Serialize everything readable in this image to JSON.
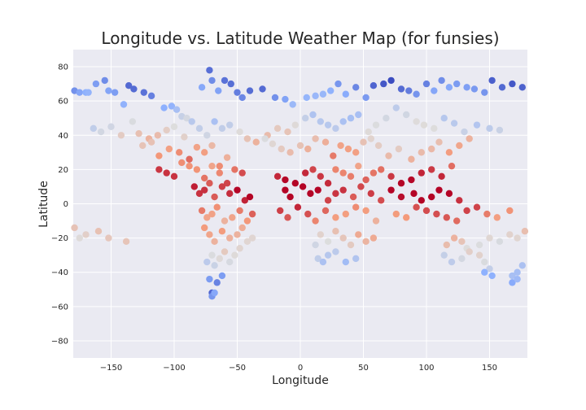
{
  "chart_data": {
    "type": "scatter",
    "title": "Longitude vs. Latitude Weather Map (for funsies)",
    "xlabel": "Longitude",
    "ylabel": "Latitude",
    "xlim": [
      -180,
      180
    ],
    "ylim": [
      -90,
      90
    ],
    "xticks": [
      -150,
      -100,
      -50,
      0,
      50,
      100,
      150
    ],
    "yticks": [
      -80,
      -60,
      -40,
      -20,
      0,
      20,
      40,
      60,
      80
    ],
    "grid": true,
    "legend": "none",
    "colormap": "coolwarm (color = temperature; cold blue at high latitudes, warm red near equator)",
    "colors": {
      "background": "#eaeaf2",
      "grid": "#ffffff",
      "cold": "#3b4cc0",
      "warm": "#b40426"
    },
    "x": [
      -179,
      -175,
      -170,
      -168,
      -162,
      -155,
      -152,
      -147,
      -140,
      -136,
      -132,
      -124,
      -118,
      -108,
      -102,
      -98,
      -94,
      -90,
      -78,
      -72,
      -70,
      -65,
      -60,
      -55,
      -50,
      -46,
      -40,
      -30,
      -20,
      -12,
      -6,
      5,
      12,
      18,
      24,
      30,
      36,
      44,
      52,
      58,
      66,
      72,
      80,
      86,
      92,
      100,
      106,
      112,
      118,
      124,
      132,
      138,
      146,
      152,
      160,
      168,
      176,
      -164,
      -158,
      -150,
      -142,
      -133,
      -128,
      -120,
      -113,
      -106,
      -100,
      -92,
      -86,
      -80,
      -74,
      -68,
      -62,
      -56,
      -48,
      -42,
      -35,
      -26,
      -18,
      -10,
      -4,
      4,
      10,
      16,
      22,
      28,
      34,
      40,
      46,
      54,
      60,
      68,
      76,
      84,
      92,
      98,
      106,
      114,
      122,
      130,
      140,
      150,
      158,
      -125,
      -118,
      -112,
      -104,
      -96,
      -88,
      -82,
      -76,
      -70,
      -64,
      -58,
      -28,
      -22,
      -15,
      -8,
      0,
      6,
      12,
      20,
      26,
      32,
      38,
      44,
      50,
      56,
      62,
      70,
      78,
      88,
      96,
      104,
      110,
      118,
      126,
      134,
      -112,
      -106,
      -100,
      -94,
      -88,
      -82,
      -76,
      -70,
      -64,
      -58,
      -52,
      -46,
      -18,
      -12,
      -4,
      4,
      10,
      16,
      22,
      28,
      34,
      40,
      46,
      52,
      58,
      64,
      72,
      80,
      88,
      96,
      104,
      112,
      120,
      -84,
      -80,
      -76,
      -72,
      -68,
      -62,
      -56,
      -50,
      -44,
      -40,
      -12,
      -8,
      2,
      8,
      14,
      22,
      28,
      34,
      42,
      48,
      56,
      64,
      72,
      80,
      90,
      96,
      104,
      110,
      118,
      126,
      -78,
      -74,
      -70,
      -66,
      -60,
      -54,
      -48,
      -42,
      -38,
      -16,
      -10,
      -2,
      6,
      12,
      20,
      28,
      36,
      44,
      52,
      60,
      76,
      84,
      92,
      100,
      108,
      116,
      124,
      132,
      140,
      148,
      156,
      166,
      -179,
      -175,
      -170,
      -160,
      -152,
      -138,
      -76,
      -72,
      -68,
      -62,
      -56,
      -50,
      -46,
      -42,
      -38,
      12,
      16,
      22,
      28,
      34,
      40,
      46,
      52,
      58,
      116,
      122,
      128,
      132,
      142,
      150,
      158,
      166,
      172,
      178,
      -74,
      -70,
      -68,
      -64,
      -60,
      -56,
      -52,
      -48,
      14,
      18,
      22,
      28,
      36,
      44,
      114,
      120,
      128,
      134,
      142,
      146,
      150,
      168,
      172,
      176,
      -72,
      -70,
      -66,
      -62,
      146,
      152,
      168,
      172,
      -70,
      -68
    ],
    "y": [
      66,
      65,
      65,
      65,
      70,
      72,
      66,
      65,
      58,
      69,
      67,
      65,
      63,
      56,
      57,
      55,
      51,
      50,
      68,
      78,
      72,
      66,
      72,
      70,
      65,
      62,
      66,
      67,
      62,
      61,
      58,
      62,
      63,
      64,
      66,
      70,
      64,
      68,
      62,
      69,
      70,
      72,
      67,
      66,
      64,
      70,
      66,
      72,
      68,
      70,
      68,
      67,
      65,
      72,
      68,
      70,
      68,
      44,
      42,
      45,
      40,
      48,
      41,
      38,
      40,
      43,
      45,
      39,
      48,
      44,
      40,
      48,
      44,
      46,
      42,
      38,
      36,
      40,
      44,
      42,
      46,
      50,
      52,
      48,
      46,
      44,
      48,
      50,
      52,
      42,
      46,
      50,
      56,
      52,
      48,
      46,
      44,
      50,
      47,
      42,
      46,
      44,
      43,
      34,
      36,
      28,
      32,
      30,
      26,
      33,
      30,
      34,
      22,
      27,
      38,
      35,
      32,
      30,
      34,
      32,
      38,
      36,
      28,
      34,
      32,
      30,
      36,
      38,
      34,
      28,
      32,
      26,
      30,
      32,
      36,
      30,
      34,
      38,
      20,
      18,
      16,
      24,
      22,
      20,
      15,
      22,
      18,
      12,
      20,
      18,
      16,
      14,
      12,
      18,
      20,
      16,
      12,
      20,
      18,
      16,
      22,
      14,
      18,
      20,
      16,
      12,
      14,
      18,
      20,
      16,
      22,
      10,
      6,
      8,
      12,
      4,
      10,
      6,
      8,
      2,
      4,
      8,
      4,
      10,
      6,
      8,
      2,
      6,
      8,
      4,
      10,
      6,
      2,
      8,
      4,
      6,
      2,
      4,
      8,
      6,
      2,
      -4,
      -8,
      -6,
      -2,
      -10,
      -8,
      -4,
      -10,
      -6,
      -4,
      -8,
      -2,
      -6,
      -10,
      -4,
      -8,
      -6,
      -2,
      -4,
      -10,
      -6,
      -8,
      -2,
      -4,
      -6,
      -8,
      -10,
      -4,
      -2,
      -6,
      -8,
      -4,
      -14,
      -20,
      -18,
      -16,
      -20,
      -22,
      -14,
      -18,
      -22,
      -16,
      -20,
      -18,
      -14,
      -22,
      -20,
      -24,
      -18,
      -22,
      -16,
      -20,
      -24,
      -18,
      -22,
      -20,
      -24,
      -20,
      -22,
      -26,
      -24,
      -20,
      -22,
      -18,
      -20,
      -16,
      -34,
      -30,
      -36,
      -32,
      -28,
      -34,
      -30,
      -26,
      -32,
      -34,
      -30,
      -28,
      -34,
      -32,
      -30,
      -34,
      -32,
      -28,
      -30,
      -34,
      -38,
      -42,
      -40,
      -36,
      -44,
      -52,
      -46,
      -42,
      -40,
      -42,
      -46,
      -44,
      -54,
      -52
    ],
    "note": "values estimated from plotted marks"
  }
}
